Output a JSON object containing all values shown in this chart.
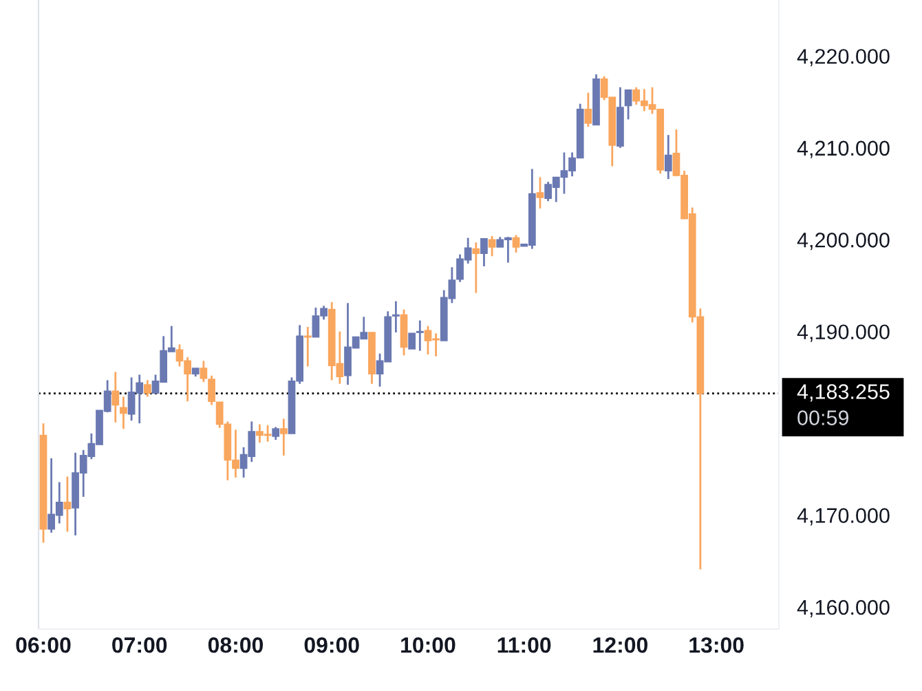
{
  "chart_data": {
    "type": "candlestick",
    "x": [
      6,
      6.0833,
      6.1667,
      6.25,
      6.3333,
      6.4167,
      6.5,
      6.5833,
      6.6667,
      6.75,
      6.8333,
      6.9167,
      7,
      7.0833,
      7.1667,
      7.25,
      7.3333,
      7.4167,
      7.5,
      7.5833,
      7.6667,
      7.75,
      7.8333,
      7.9167,
      8,
      8.0833,
      8.1667,
      8.25,
      8.3333,
      8.4167,
      8.5,
      8.5833,
      8.6667,
      8.75,
      8.8333,
      8.9167,
      9,
      9.0833,
      9.1667,
      9.25,
      9.3333,
      9.4167,
      9.5,
      9.5833,
      9.6667,
      9.75,
      9.8333,
      9.9167,
      10,
      10.0833,
      10.1667,
      10.25,
      10.3333,
      10.4167,
      10.5,
      10.5833,
      10.6667,
      10.75,
      10.8333,
      10.9167,
      11,
      11.0833,
      11.1667,
      11.25,
      11.3333,
      11.4167,
      11.5,
      11.5833,
      11.6667,
      11.75,
      11.8333,
      11.9167,
      12,
      12.0833,
      12.1667,
      12.25,
      12.3333,
      12.4167,
      12.5,
      12.5833,
      12.6667,
      12.75,
      12.8333
    ],
    "ohlc": [
      [
        4178.7,
        4180.0,
        4167.0,
        4168.5
      ],
      [
        4168.5,
        4176.2,
        4168.1,
        4170.1
      ],
      [
        4170.0,
        4173.6,
        4169.1,
        4171.4
      ],
      [
        4171.4,
        4174.2,
        4168.2,
        4170.7
      ],
      [
        4170.8,
        4176.8,
        4167.8,
        4174.6
      ],
      [
        4174.6,
        4177.1,
        4172.0,
        4176.5
      ],
      [
        4176.4,
        4178.9,
        4176.1,
        4177.8
      ],
      [
        4177.7,
        4181.4,
        4177.7,
        4181.4
      ],
      [
        4181.3,
        4184.7,
        4181.2,
        4183.5
      ],
      [
        4183.5,
        4185.6,
        4180.1,
        4182.0
      ],
      [
        4181.7,
        4182.9,
        4179.4,
        4181.1
      ],
      [
        4181.0,
        4185.0,
        4180.3,
        4183.4
      ],
      [
        4183.3,
        4185.3,
        4180.0,
        4184.4
      ],
      [
        4184.2,
        4184.7,
        4182.9,
        4183.3
      ],
      [
        4183.3,
        4185.3,
        4183.3,
        4184.6
      ],
      [
        4184.5,
        4189.5,
        4184.5,
        4187.9
      ],
      [
        4187.8,
        4190.6,
        4187.8,
        4188.2
      ],
      [
        4188.0,
        4188.6,
        4186.2,
        4186.8
      ],
      [
        4186.8,
        4187.2,
        4182.4,
        4185.4
      ],
      [
        4185.4,
        4186.0,
        4185.1,
        4186.0
      ],
      [
        4186.0,
        4186.8,
        4184.5,
        4184.9
      ],
      [
        4184.8,
        4185.2,
        4182.0,
        4182.4
      ],
      [
        4182.3,
        4182.3,
        4179.5,
        4179.9
      ],
      [
        4179.9,
        4180.2,
        4173.8,
        4176.0
      ],
      [
        4176.0,
        4179.3,
        4174.1,
        4175.1
      ],
      [
        4175.1,
        4177.4,
        4174.1,
        4176.6
      ],
      [
        4176.4,
        4180.2,
        4175.8,
        4179.1
      ],
      [
        4179.1,
        4179.9,
        4177.9,
        4178.7
      ],
      [
        4178.8,
        4179.8,
        4178.0,
        4178.7
      ],
      [
        4178.6,
        4179.6,
        4178.2,
        4179.4
      ],
      [
        4179.4,
        4180.5,
        4176.5,
        4178.9
      ],
      [
        4178.9,
        4185.0,
        4178.9,
        4184.6
      ],
      [
        4184.6,
        4190.7,
        4184.3,
        4189.5
      ],
      [
        4189.5,
        4190.5,
        4186.2,
        4189.4
      ],
      [
        4189.4,
        4192.6,
        4189.4,
        4191.7
      ],
      [
        4191.7,
        4192.8,
        4191.3,
        4192.5
      ],
      [
        4192.4,
        4193.2,
        4184.7,
        4186.3
      ],
      [
        4186.5,
        4190.0,
        4184.3,
        4185.1
      ],
      [
        4185.2,
        4193.1,
        4184.2,
        4188.3
      ],
      [
        4188.2,
        4189.4,
        4188.2,
        4189.4
      ],
      [
        4189.2,
        4191.6,
        4189.2,
        4189.9
      ],
      [
        4189.9,
        4189.9,
        4184.3,
        4185.4
      ],
      [
        4185.4,
        4187.6,
        4184.0,
        4186.8
      ],
      [
        4186.7,
        4192.2,
        4186.7,
        4191.6
      ],
      [
        4191.7,
        4193.3,
        4189.9,
        4191.8
      ],
      [
        4191.8,
        4192.4,
        4187.4,
        4188.3
      ],
      [
        4188.1,
        4189.8,
        4188.1,
        4189.8
      ],
      [
        4189.9,
        4191.2,
        4187.9,
        4190.0
      ],
      [
        4190.1,
        4190.6,
        4187.5,
        4189.0
      ],
      [
        4189.2,
        4189.8,
        4187.3,
        4189.1
      ],
      [
        4189.0,
        4194.5,
        4189.0,
        4193.7
      ],
      [
        4193.6,
        4197.0,
        4193.1,
        4195.6
      ],
      [
        4195.7,
        4198.4,
        4195.4,
        4197.9
      ],
      [
        4197.8,
        4200.2,
        4197.4,
        4199.1
      ],
      [
        4199.0,
        4199.7,
        4194.2,
        4198.5
      ],
      [
        4198.5,
        4200.1,
        4197.1,
        4200.1
      ],
      [
        4200.0,
        4200.4,
        4198.2,
        4199.2
      ],
      [
        4199.2,
        4200.3,
        4199.2,
        4200.0
      ],
      [
        4200.0,
        4200.3,
        4197.5,
        4200.2
      ],
      [
        4200.2,
        4200.5,
        4198.6,
        4199.2
      ],
      [
        4199.3,
        4199.5,
        4199.3,
        4199.5
      ],
      [
        4199.4,
        4207.7,
        4199.0,
        4205.0
      ],
      [
        4205.1,
        4206.8,
        4203.4,
        4204.6
      ],
      [
        4204.5,
        4206.3,
        4204.2,
        4206.0
      ],
      [
        4205.7,
        4206.8,
        4204.1,
        4206.8
      ],
      [
        4206.8,
        4209.5,
        4205.0,
        4207.5
      ],
      [
        4207.5,
        4209.5,
        4206.9,
        4208.9
      ],
      [
        4208.9,
        4214.8,
        4208.9,
        4214.2
      ],
      [
        4214.2,
        4216.0,
        4212.3,
        4212.7
      ],
      [
        4212.5,
        4218.0,
        4212.5,
        4217.5
      ],
      [
        4217.5,
        4217.8,
        4215.2,
        4215.5
      ],
      [
        4215.5,
        4215.5,
        4208.0,
        4210.3
      ],
      [
        4210.2,
        4216.6,
        4210.0,
        4214.4
      ],
      [
        4214.6,
        4216.3,
        4213.1,
        4216.3
      ],
      [
        4216.3,
        4216.6,
        4214.7,
        4215.1
      ],
      [
        4215.1,
        4216.4,
        4214.0,
        4214.6
      ],
      [
        4214.7,
        4216.6,
        4213.7,
        4214.2
      ],
      [
        4214.2,
        4214.2,
        4207.2,
        4207.6
      ],
      [
        4207.5,
        4211.4,
        4206.6,
        4209.2
      ],
      [
        4209.4,
        4212.0,
        4206.9,
        4207.0
      ],
      [
        4207.0,
        4207.5,
        4202.3,
        4202.3
      ],
      [
        4202.8,
        4203.5,
        4191.0,
        4191.6
      ],
      [
        4191.6,
        4192.5,
        4164.1,
        4183.255
      ]
    ],
    "colors": [
      "#f9a65e",
      "#6a79b2",
      "#6a79b2",
      "#f9a65e",
      "#6a79b2",
      "#6a79b2",
      "#6a79b2",
      "#6a79b2",
      "#6a79b2",
      "#f9a65e",
      "#f9a65e",
      "#6a79b2",
      "#6a79b2",
      "#f9a65e",
      "#6a79b2",
      "#6a79b2",
      "#6a79b2",
      "#f9a65e",
      "#f9a65e",
      "#6a79b2",
      "#f9a65e",
      "#f9a65e",
      "#f9a65e",
      "#f9a65e",
      "#f9a65e",
      "#6a79b2",
      "#6a79b2",
      "#f9a65e",
      "#f9a65e",
      "#6a79b2",
      "#f9a65e",
      "#6a79b2",
      "#6a79b2",
      "#f9a65e",
      "#6a79b2",
      "#6a79b2",
      "#f9a65e",
      "#f9a65e",
      "#6a79b2",
      "#6a79b2",
      "#6a79b2",
      "#f9a65e",
      "#6a79b2",
      "#6a79b2",
      "#6a79b2",
      "#f9a65e",
      "#6a79b2",
      "#6a79b2",
      "#f9a65e",
      "#f9a65e",
      "#6a79b2",
      "#6a79b2",
      "#6a79b2",
      "#6a79b2",
      "#f9a65e",
      "#6a79b2",
      "#f9a65e",
      "#6a79b2",
      "#6a79b2",
      "#f9a65e",
      "#6a79b2",
      "#6a79b2",
      "#f9a65e",
      "#6a79b2",
      "#6a79b2",
      "#6a79b2",
      "#6a79b2",
      "#6a79b2",
      "#f9a65e",
      "#6a79b2",
      "#f9a65e",
      "#f9a65e",
      "#6a79b2",
      "#6a79b2",
      "#f9a65e",
      "#f9a65e",
      "#f9a65e",
      "#f9a65e",
      "#6a79b2",
      "#f9a65e",
      "#f9a65e",
      "#f9a65e",
      "#f9a65e"
    ],
    "xlim": [
      5.95,
      13.65
    ],
    "xticks": [
      {
        "value": 6,
        "label": "06:00"
      },
      {
        "value": 7,
        "label": "07:00"
      },
      {
        "value": 8,
        "label": "08:00"
      },
      {
        "value": 9,
        "label": "09:00"
      },
      {
        "value": 10,
        "label": "10:00"
      },
      {
        "value": 11,
        "label": "11:00"
      },
      {
        "value": 12,
        "label": "12:00"
      },
      {
        "value": 13,
        "label": "13:00"
      }
    ],
    "ylim": [
      4157.6,
      4226.1
    ],
    "yticks": [
      {
        "value": 4160,
        "label": "4,160.000"
      },
      {
        "value": 4170,
        "label": "4,170.000"
      },
      {
        "value": 4190,
        "label": "4,190.000"
      },
      {
        "value": 4200,
        "label": "4,200.000"
      },
      {
        "value": 4210,
        "label": "4,210.000"
      },
      {
        "value": 4220,
        "label": "4,220.000"
      }
    ],
    "ref_lines": [
      {
        "axis": "y",
        "value": 4183.255,
        "label": "4,183.255",
        "color": "#000000",
        "line_style": "dotted"
      }
    ],
    "annotations": [
      "00:59"
    ]
  }
}
